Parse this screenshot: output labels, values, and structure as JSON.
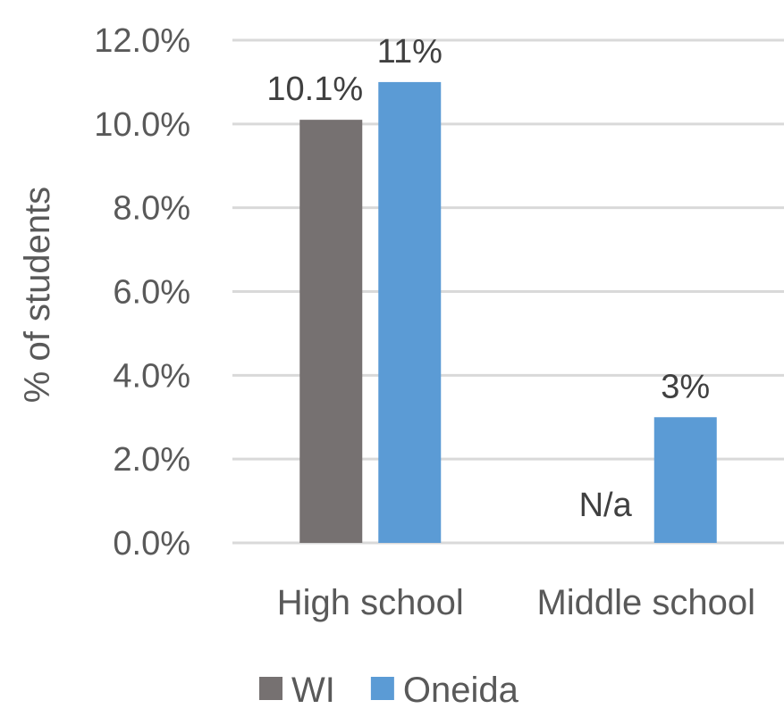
{
  "chart_data": {
    "type": "bar",
    "categories": [
      "High school",
      "Middle school"
    ],
    "series": [
      {
        "name": "WI",
        "values": [
          10.1,
          null
        ],
        "labels": [
          "10.1%",
          "N/a"
        ],
        "color": "#767171"
      },
      {
        "name": "Oneida",
        "values": [
          11,
          3
        ],
        "labels": [
          "11%",
          "3%"
        ],
        "color": "#5b9bd5"
      }
    ],
    "ylabel": "% of students",
    "ylim": [
      0,
      12
    ],
    "yticks": [
      0,
      2,
      4,
      6,
      8,
      10,
      12
    ],
    "ytick_labels": [
      "0.0%",
      "2.0%",
      "4.0%",
      "6.0%",
      "8.0%",
      "10.0%",
      "12.0%"
    ],
    "grid": true,
    "legend": "bottom"
  }
}
